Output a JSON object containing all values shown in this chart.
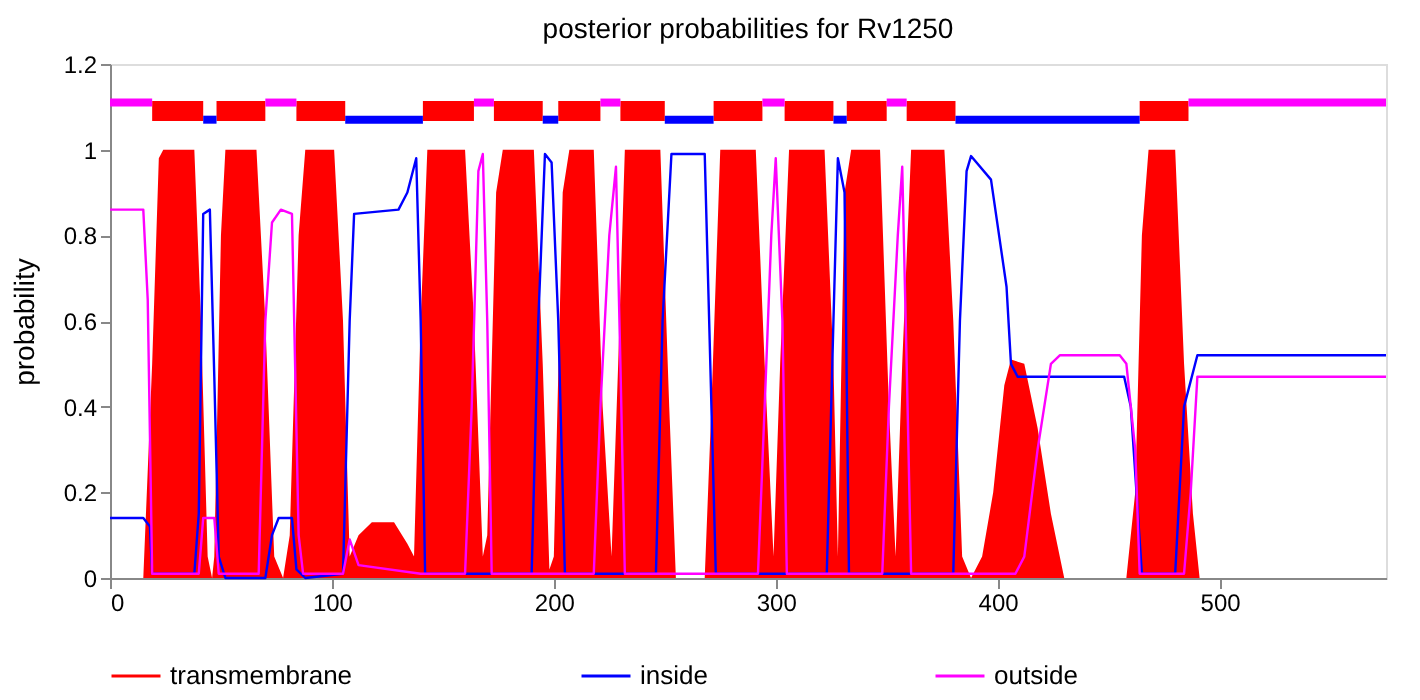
{
  "chart_data": {
    "type": "line",
    "title": "posterior probabilities for Rv1250",
    "ylabel": "probability",
    "xlim": [
      0,
      575
    ],
    "xticks": [
      0,
      100,
      200,
      300,
      400,
      500
    ],
    "ylim": [
      0,
      1.2
    ],
    "yticks": [
      0,
      0.2,
      0.4,
      0.6,
      0.8,
      1,
      1.2
    ],
    "grid": false,
    "legend": "bottom",
    "marker": "none",
    "line_style": "solid",
    "series": [
      {
        "name": "transmembrane",
        "type": "area",
        "color": "#ff0000",
        "x": [
          0,
          15,
          19,
          22,
          24,
          38,
          41,
          44,
          46,
          47,
          50,
          52,
          66,
          70,
          74,
          78,
          81,
          85,
          88,
          101,
          105,
          108,
          112,
          118,
          128,
          134,
          137,
          140,
          143,
          160,
          164,
          168,
          170,
          174,
          177,
          191,
          195,
          198,
          200,
          204,
          207,
          218,
          222,
          226,
          229,
          232,
          248,
          252,
          255,
          268,
          271,
          275,
          291,
          295,
          299,
          302,
          306,
          322,
          326,
          328,
          331,
          334,
          347,
          351,
          354,
          357,
          361,
          376,
          380,
          384,
          388,
          393,
          398,
          403,
          406,
          412,
          418,
          424,
          430,
          458,
          462,
          465,
          468,
          480,
          484,
          488,
          491,
          575
        ],
        "values": [
          0,
          0,
          0.5,
          0.98,
          1,
          1,
          0.6,
          0.05,
          0,
          0.05,
          0.8,
          1,
          1,
          0.6,
          0.05,
          0,
          0.1,
          0.8,
          1,
          1,
          0.6,
          0.05,
          0.1,
          0.13,
          0.13,
          0.08,
          0.05,
          0.6,
          1,
          1,
          0.6,
          0.05,
          0.1,
          0.9,
          1,
          1,
          0.5,
          0.02,
          0.05,
          0.9,
          1,
          1,
          0.4,
          0.05,
          0.5,
          1,
          1,
          0.4,
          0,
          0,
          0.4,
          1,
          1,
          0.5,
          0.05,
          0.5,
          1,
          1,
          0.5,
          0.05,
          0.9,
          1,
          1,
          0.4,
          0.05,
          0.5,
          1,
          1,
          0.6,
          0.05,
          0,
          0.05,
          0.2,
          0.45,
          0.51,
          0.5,
          0.35,
          0.15,
          0,
          0,
          0.2,
          0.8,
          1,
          1,
          0.5,
          0.15,
          0,
          0
        ]
      },
      {
        "name": "inside",
        "color": "#0000ff",
        "x": [
          0,
          15,
          18,
          19,
          38,
          40,
          42,
          45,
          47,
          49,
          52,
          70,
          73,
          76,
          82,
          84,
          88,
          105,
          108,
          110,
          130,
          134,
          138,
          140,
          142,
          190,
          193,
          196,
          199,
          202,
          205,
          246,
          249,
          253,
          268,
          270,
          273,
          323,
          326,
          328,
          331,
          333,
          380,
          383,
          386,
          388,
          397,
          404,
          406,
          409,
          457,
          460,
          465,
          480,
          484,
          490,
          575
        ],
        "values": [
          0.14,
          0.14,
          0.12,
          0.01,
          0.01,
          0.15,
          0.85,
          0.86,
          0.47,
          0.05,
          0,
          0,
          0.1,
          0.14,
          0.14,
          0.02,
          0,
          0.01,
          0.6,
          0.85,
          0.86,
          0.9,
          0.98,
          0.6,
          0.01,
          0.01,
          0.6,
          0.99,
          0.97,
          0.6,
          0.01,
          0.01,
          0.6,
          0.99,
          0.99,
          0.6,
          0.01,
          0.01,
          0.6,
          0.98,
          0.9,
          0.01,
          0.01,
          0.6,
          0.95,
          0.985,
          0.93,
          0.68,
          0.5,
          0.47,
          0.47,
          0.4,
          0.01,
          0.01,
          0.4,
          0.52,
          0.52
        ]
      },
      {
        "name": "outside",
        "color": "#ff00ff",
        "x": [
          0,
          15,
          17,
          19,
          40,
          42,
          47,
          49,
          67,
          70,
          73,
          77,
          82,
          85,
          87,
          105,
          108,
          112,
          140,
          160,
          163,
          166,
          168,
          170,
          172,
          218,
          221,
          225,
          228,
          230,
          232,
          292,
          295,
          298,
          300,
          303,
          305,
          348,
          351,
          355,
          357,
          359,
          361,
          408,
          412,
          418,
          424,
          428,
          455,
          458,
          462,
          464,
          484,
          487,
          490,
          575
        ],
        "values": [
          0.86,
          0.86,
          0.65,
          0.01,
          0.01,
          0.14,
          0.14,
          0.01,
          0.01,
          0.6,
          0.83,
          0.86,
          0.85,
          0.1,
          0.01,
          0.01,
          0.09,
          0.03,
          0.01,
          0.01,
          0.4,
          0.95,
          0.99,
          0.6,
          0.01,
          0.01,
          0.4,
          0.8,
          0.96,
          0.5,
          0.01,
          0.01,
          0.4,
          0.8,
          0.98,
          0.6,
          0.01,
          0.01,
          0.4,
          0.8,
          0.96,
          0.5,
          0.01,
          0.01,
          0.05,
          0.3,
          0.5,
          0.52,
          0.52,
          0.5,
          0.3,
          0.01,
          0.01,
          0.2,
          0.47,
          0.47
        ]
      },
      {
        "color": "#ff0000",
        "x": [
          19,
          42,
          45,
          48,
          70,
          77,
          84,
          106,
          123,
          141,
          164,
          168,
          173,
          195,
          198,
          202,
          221,
          225,
          230,
          250,
          261,
          272,
          294,
          299,
          304,
          326,
          329,
          332,
          350,
          354,
          359,
          381,
          422,
          464,
          486
        ],
        "values": [
          1.09,
          1.09,
          null,
          1.09,
          1.09,
          null,
          1.09,
          1.09,
          null,
          1.09,
          1.09,
          null,
          1.09,
          1.09,
          null,
          1.09,
          1.09,
          null,
          1.09,
          1.09,
          null,
          1.09,
          1.09,
          null,
          1.09,
          1.09,
          null,
          1.09,
          1.09,
          null,
          1.09,
          1.09,
          null,
          1.09,
          1.09
        ]
      },
      {
        "color": "#0000ff",
        "x": [
          42,
          48,
          77,
          106,
          141,
          168,
          195,
          202,
          225,
          250,
          272,
          299,
          326,
          332,
          354,
          381,
          464
        ],
        "values": [
          1.07,
          1.07,
          null,
          1.07,
          1.07,
          null,
          1.07,
          1.07,
          null,
          1.07,
          1.07,
          null,
          1.07,
          1.07,
          null,
          1.07,
          1.07
        ]
      },
      {
        "color": "#ff00ff",
        "x": [
          0,
          19,
          45,
          70,
          84,
          123,
          164,
          173,
          198,
          221,
          230,
          261,
          294,
          304,
          329,
          350,
          359,
          422,
          486,
          575
        ],
        "values": [
          1.11,
          1.11,
          null,
          1.11,
          1.11,
          null,
          1.11,
          1.11,
          null,
          1.11,
          1.11,
          null,
          1.11,
          1.11,
          null,
          1.11,
          1.11,
          null,
          1.11,
          1.11
        ]
      }
    ]
  }
}
